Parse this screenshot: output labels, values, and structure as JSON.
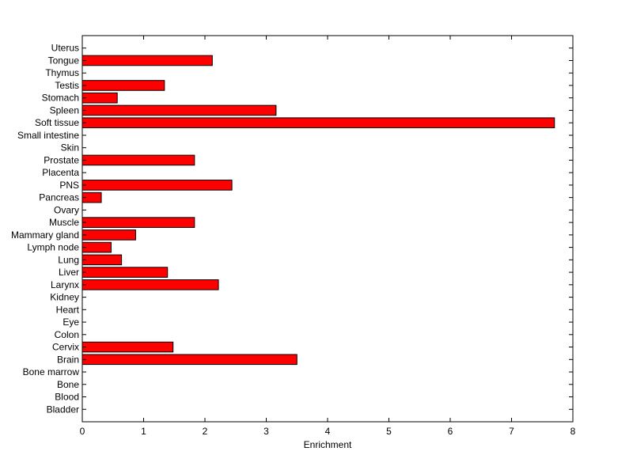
{
  "chart_data": {
    "type": "bar",
    "orientation": "horizontal",
    "title": "",
    "xlabel": "Enrichment",
    "ylabel": "",
    "xlim": [
      0,
      8
    ],
    "xticks": [
      0,
      1,
      2,
      3,
      4,
      5,
      6,
      7,
      8
    ],
    "grid": false,
    "bar_color": "#ff0000",
    "categories": [
      "Bladder",
      "Blood",
      "Bone",
      "Bone marrow",
      "Brain",
      "Cervix",
      "Colon",
      "Eye",
      "Heart",
      "Kidney",
      "Larynx",
      "Liver",
      "Lung",
      "Lymph node",
      "Mammary gland",
      "Muscle",
      "Ovary",
      "Pancreas",
      "PNS",
      "Placenta",
      "Prostate",
      "Skin",
      "Small intestine",
      "Soft tissue",
      "Spleen",
      "Stomach",
      "Testis",
      "Thymus",
      "Tongue",
      "Uterus"
    ],
    "values": [
      0,
      0,
      0,
      0,
      3.5,
      1.48,
      0,
      0,
      0,
      0,
      2.22,
      1.39,
      0.64,
      0.47,
      0.87,
      1.83,
      0,
      0.31,
      2.44,
      0,
      1.83,
      0,
      0,
      7.7,
      3.16,
      0.57,
      1.34,
      0,
      2.12,
      0
    ]
  }
}
